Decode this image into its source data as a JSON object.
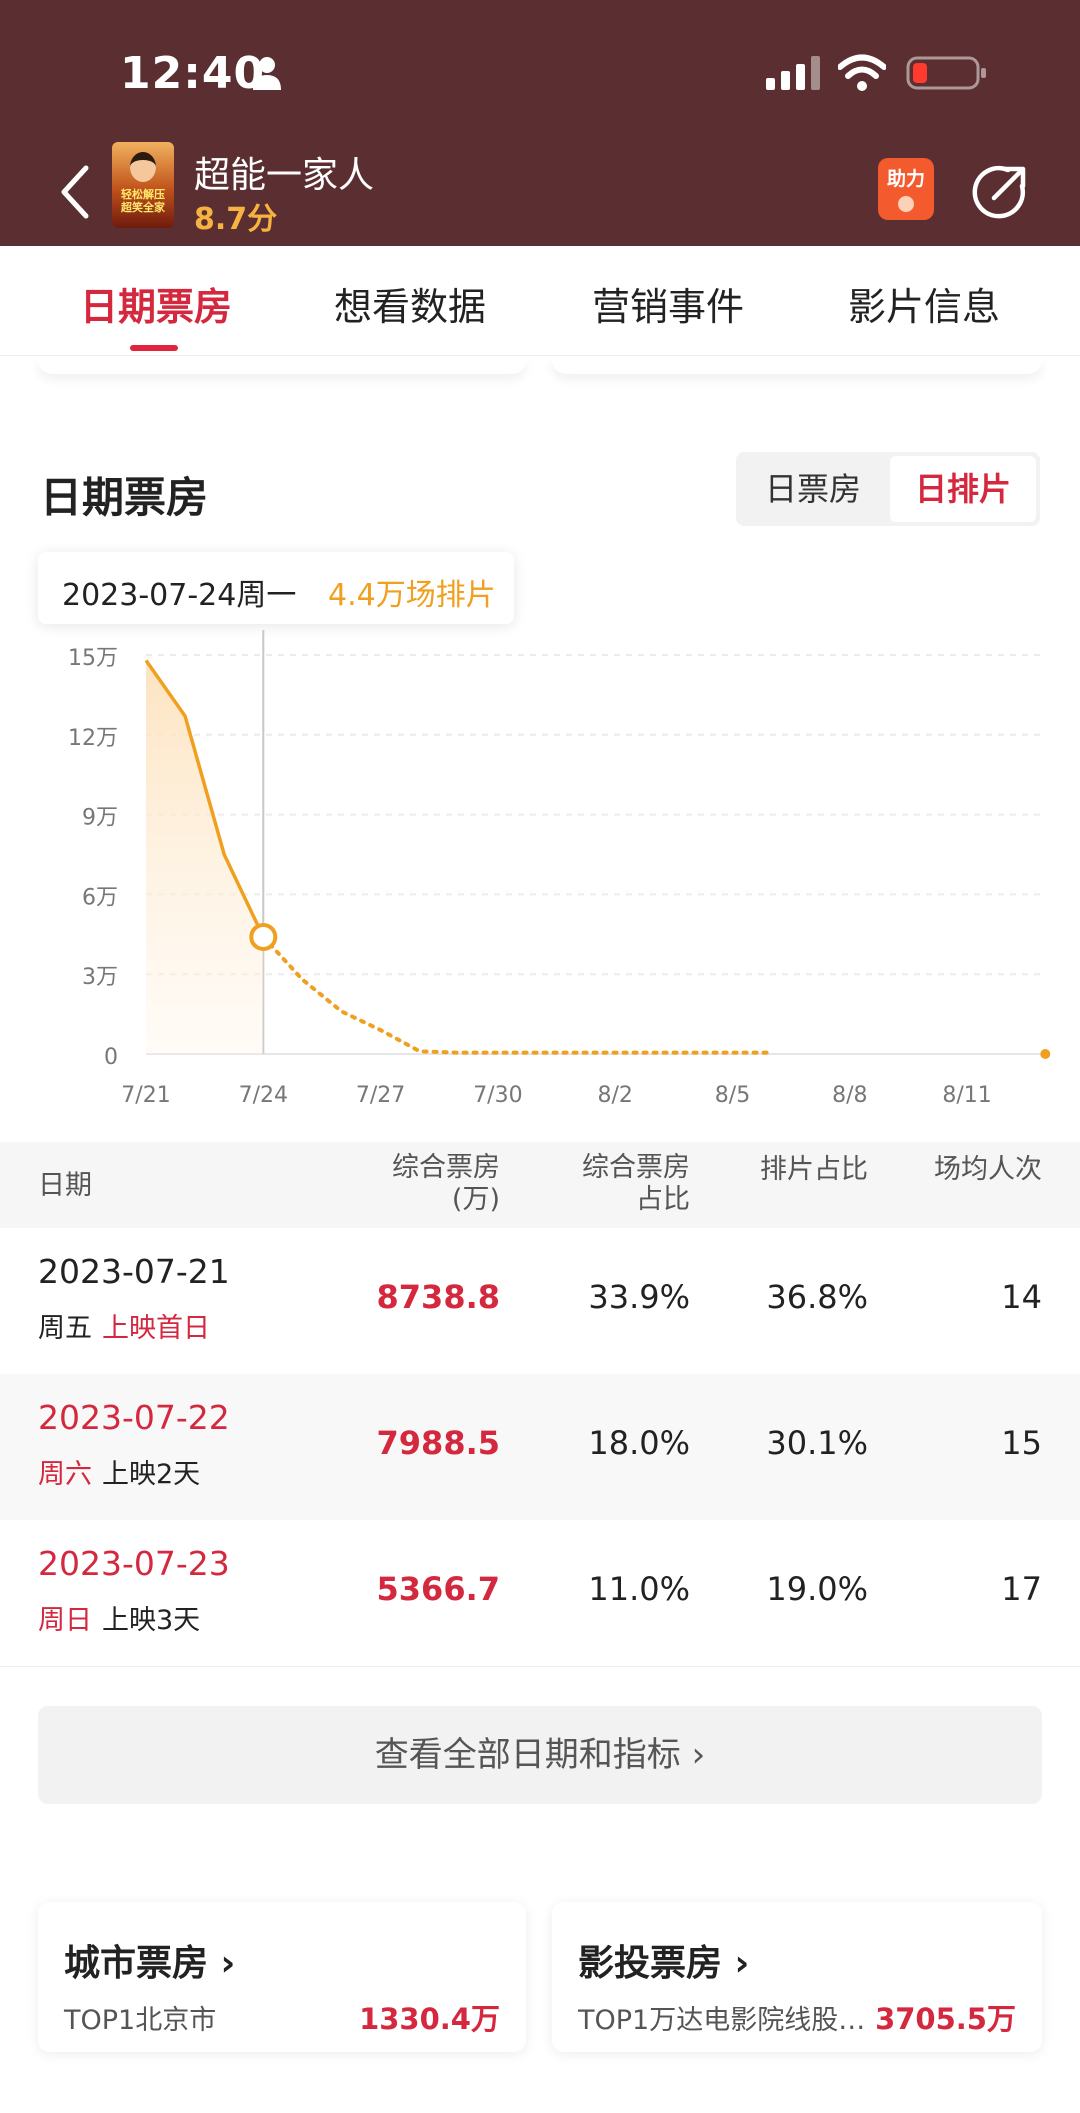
{
  "status_bar": {
    "time": "12:40"
  },
  "header": {
    "title": "超能一家人",
    "score": "8.7分",
    "poster_text": "轻松解压 超笑全家",
    "help_label": "助力"
  },
  "tabs": [
    {
      "label": "日期票房",
      "active": true
    },
    {
      "label": "想看数据",
      "active": false
    },
    {
      "label": "营销事件",
      "active": false
    },
    {
      "label": "影片信息",
      "active": false
    }
  ],
  "section": {
    "title": "日期票房",
    "toggle": [
      {
        "label": "日票房",
        "active": false
      },
      {
        "label": "日排片",
        "active": true
      }
    ]
  },
  "tooltip": {
    "date": "2023-07-24周一",
    "value": "4.4万场排片"
  },
  "chart_data": {
    "type": "line",
    "title": "",
    "xlabel": "",
    "ylabel": "",
    "y_ticks": [
      "15万",
      "12万",
      "9万",
      "6万",
      "3万",
      "0"
    ],
    "x_ticks": [
      "7/21",
      "7/24",
      "7/27",
      "7/30",
      "8/2",
      "8/5",
      "8/8",
      "8/11"
    ],
    "ylim": [
      0,
      15
    ],
    "series": [
      {
        "segment": "actual",
        "x": [
          "7/21",
          "7/22",
          "7/23",
          "7/24"
        ],
        "y": [
          14.8,
          12.7,
          7.5,
          4.4
        ]
      },
      {
        "segment": "forecast",
        "x": [
          "7/24",
          "7/25",
          "7/26",
          "7/27",
          "7/28",
          "7/29",
          "7/30",
          "7/31",
          "8/1",
          "8/2",
          "8/3",
          "8/4",
          "8/5",
          "8/6"
        ],
        "y": [
          4.4,
          2.8,
          1.6,
          0.9,
          0.1,
          0.05,
          0.05,
          0.05,
          0.05,
          0.05,
          0.05,
          0.05,
          0.05,
          0.05
        ]
      }
    ],
    "highlight": {
      "x": "7/24",
      "y": 4.4
    },
    "trailing_point": {
      "x": "8/13",
      "y": 0
    },
    "grid": true,
    "colors": {
      "line": "#f0a020",
      "area": "#fde6c6"
    }
  },
  "table": {
    "headers": [
      {
        "label": "日期"
      },
      {
        "label": "综合票房\n(万)"
      },
      {
        "label": "综合票房\n占比"
      },
      {
        "label": "排片占比"
      },
      {
        "label": "场均人次"
      }
    ],
    "rows": [
      {
        "date": "2023-07-21",
        "weekday": "周五",
        "tag": "上映首日",
        "box_office": "8738.8",
        "box_share": "33.9%",
        "screen_share": "36.8%",
        "avg_viewers": "14"
      },
      {
        "date": "2023-07-22",
        "weekday": "周六",
        "tag": "上映2天",
        "box_office": "7988.5",
        "box_share": "18.0%",
        "screen_share": "30.1%",
        "avg_viewers": "15"
      },
      {
        "date": "2023-07-23",
        "weekday": "周日",
        "tag": "上映3天",
        "box_office": "5366.7",
        "box_share": "11.0%",
        "screen_share": "19.0%",
        "avg_viewers": "17"
      }
    ]
  },
  "view_all": "查看全部日期和指标 ›",
  "bottom_cards": [
    {
      "title": "城市票房 ›",
      "subtitle": "TOP1北京市",
      "value": "1330.4万"
    },
    {
      "title": "影投票房 ›",
      "subtitle": "TOP1万达电影院线股…",
      "value": "3705.5万"
    }
  ],
  "colors": {
    "accent": "#d4283f",
    "header_bg": "#5b2f31",
    "chart_line": "#f0a020"
  }
}
